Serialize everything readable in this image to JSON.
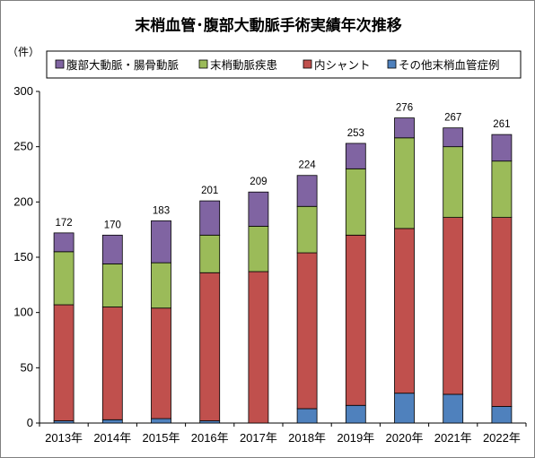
{
  "chart_data": {
    "type": "bar",
    "stacked": true,
    "title": "末梢血管･腹部大動脈手術実績年次推移",
    "ylabel": "（件）",
    "xlabel": "",
    "categories": [
      "2013年",
      "2014年",
      "2015年",
      "2016年",
      "2017年",
      "2018年",
      "2019年",
      "2020年",
      "2021年",
      "2022年"
    ],
    "ylim": [
      0,
      300
    ],
    "yticks": [
      0,
      50,
      100,
      150,
      200,
      250,
      300
    ],
    "grid": false,
    "legend_position": "top",
    "series": [
      {
        "name": "その他末梢血管症例",
        "color": "#4f81bd",
        "values": [
          2,
          3,
          4,
          2,
          0,
          13,
          16,
          27,
          26,
          15
        ]
      },
      {
        "name": "内シャント",
        "color": "#c0504d",
        "values": [
          105,
          102,
          100,
          134,
          137,
          141,
          154,
          149,
          160,
          171
        ]
      },
      {
        "name": "末梢動脈疾患",
        "color": "#9bbb59",
        "values": [
          48,
          39,
          41,
          34,
          41,
          42,
          60,
          82,
          64,
          51
        ]
      },
      {
        "name": "腹部大動脈・腸骨動脈",
        "color": "#8064a2",
        "values": [
          17,
          26,
          38,
          31,
          31,
          28,
          23,
          18,
          17,
          24
        ]
      }
    ],
    "totals": [
      172,
      170,
      183,
      201,
      209,
      224,
      253,
      276,
      267,
      261
    ],
    "legend_order": [
      "腹部大動脈・腸骨動脈",
      "末梢動脈疾患",
      "内シャント",
      "その他末梢血管症例"
    ]
  }
}
